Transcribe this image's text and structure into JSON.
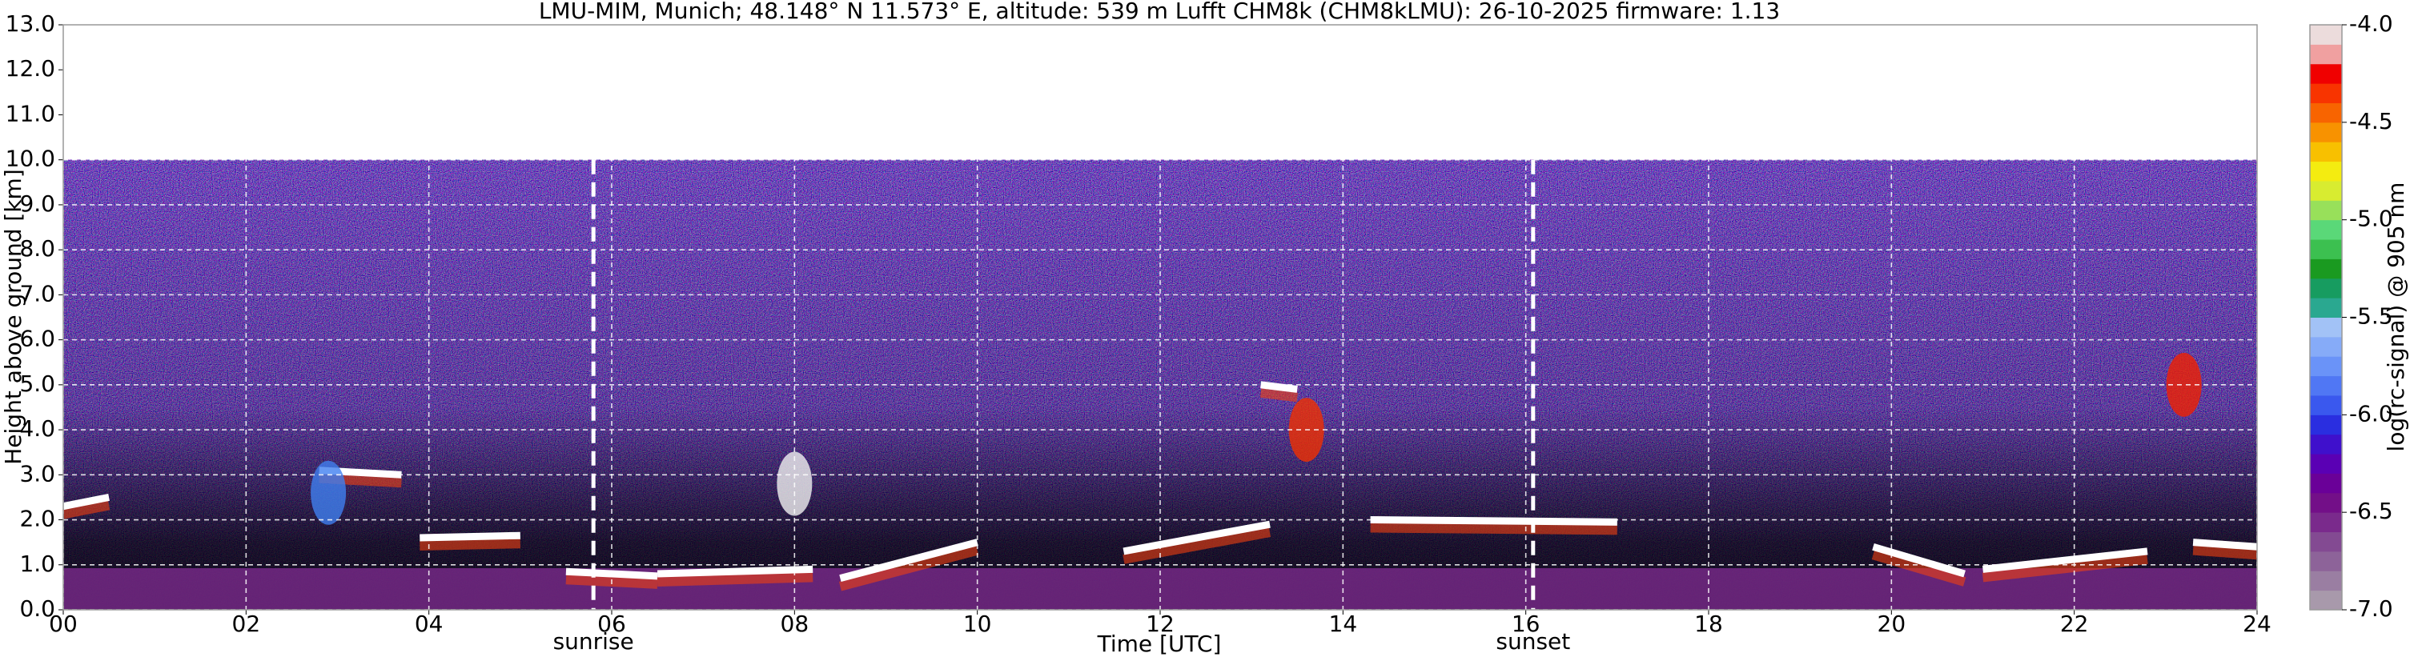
{
  "chart_data": {
    "type": "heatmap",
    "title": "LMU-MIM, Munich; 48.148° N 11.573° E, altitude: 539 m    Lufft CHM8k (CHM8kLMU): 26-10-2025    firmware: 1.13",
    "xlabel": "Time [UTC]",
    "ylabel": "Height above ground [km]",
    "xlim": [
      0,
      24
    ],
    "ylim": [
      0,
      13
    ],
    "xticks": [
      {
        "value": 0,
        "label": "00"
      },
      {
        "value": 2,
        "label": "02"
      },
      {
        "value": 4,
        "label": "04"
      },
      {
        "value": 6,
        "label": "06"
      },
      {
        "value": 8,
        "label": "08"
      },
      {
        "value": 10,
        "label": "10"
      },
      {
        "value": 12,
        "label": "12"
      },
      {
        "value": 14,
        "label": "14"
      },
      {
        "value": 16,
        "label": "16"
      },
      {
        "value": 18,
        "label": "18"
      },
      {
        "value": 20,
        "label": "20"
      },
      {
        "value": 22,
        "label": "22"
      },
      {
        "value": 24,
        "label": "24"
      }
    ],
    "yticks": [
      {
        "value": 0,
        "label": "0.0"
      },
      {
        "value": 1,
        "label": "1.0"
      },
      {
        "value": 2,
        "label": "2.0"
      },
      {
        "value": 3,
        "label": "3.0"
      },
      {
        "value": 4,
        "label": "4.0"
      },
      {
        "value": 5,
        "label": "5.0"
      },
      {
        "value": 6,
        "label": "6.0"
      },
      {
        "value": 7,
        "label": "7.0"
      },
      {
        "value": 8,
        "label": "8.0"
      },
      {
        "value": 9,
        "label": "9.0"
      },
      {
        "value": 10,
        "label": "10.0"
      },
      {
        "value": 11,
        "label": "11.0"
      },
      {
        "value": 12,
        "label": "12.0"
      },
      {
        "value": 13,
        "label": "13.0"
      }
    ],
    "grid": true,
    "annotations": [
      {
        "label": "sunrise",
        "x": 5.8
      },
      {
        "label": "sunset",
        "x": 16.08
      }
    ],
    "colorbar": {
      "label": "log(rc-signal) @ 905 nm",
      "lim": [
        -7,
        -4
      ],
      "ticks": [
        {
          "value": -4,
          "label": "-4.0"
        },
        {
          "value": -4.5,
          "label": "-4.5"
        },
        {
          "value": -5,
          "label": "-5.0"
        },
        {
          "value": -5.5,
          "label": "-5.5"
        },
        {
          "value": -6,
          "label": "-6.0"
        },
        {
          "value": -6.5,
          "label": "-6.5"
        },
        {
          "value": -7,
          "label": "-7.0"
        }
      ],
      "colors": [
        "#a899ab",
        "#9a7ea2",
        "#8d6399",
        "#834a92",
        "#7a2a8c",
        "#730f88",
        "#6a0098",
        "#5a00b4",
        "#3f10cc",
        "#2a2ee0",
        "#3a58ee",
        "#5077f4",
        "#6a93f8",
        "#86abf8",
        "#a2c2f6",
        "#2aa890",
        "#179c60",
        "#1a9a20",
        "#3cc050",
        "#5ad878",
        "#98e05a",
        "#d8ec30",
        "#f4ec10",
        "#f8c000",
        "#f89200",
        "#f86400",
        "#f83400",
        "#f00000",
        "#f0a0a0",
        "#ecdcdc"
      ]
    }
  }
}
